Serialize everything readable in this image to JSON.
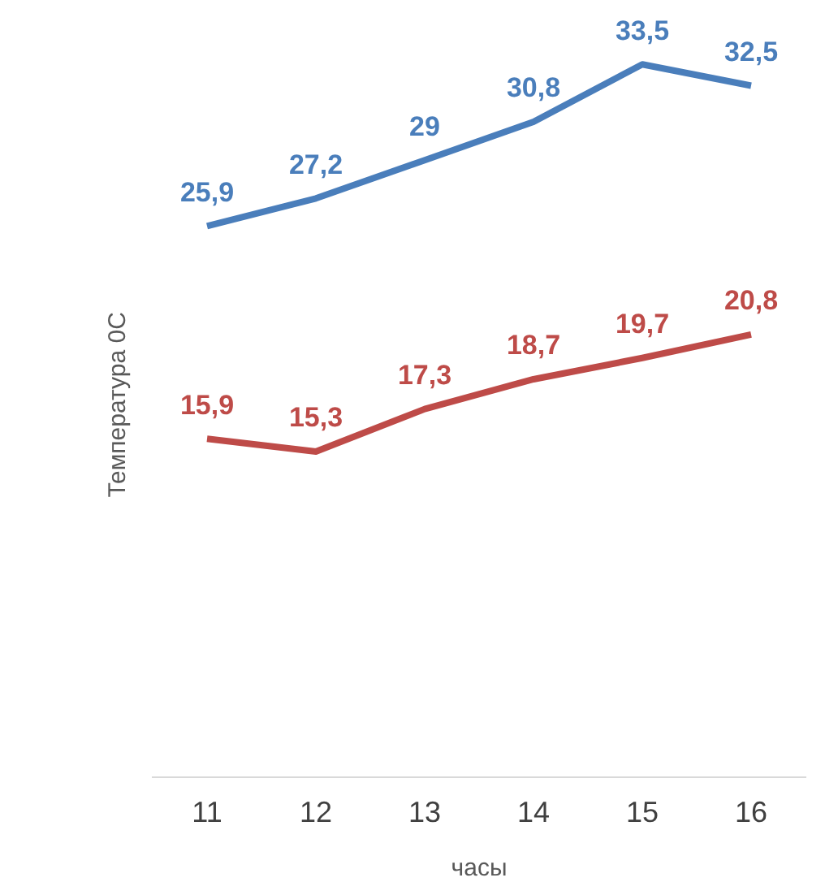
{
  "chart_data": {
    "type": "line",
    "xlabel": "часы",
    "ylabel": "Температура 0С",
    "categories": [
      "11",
      "12",
      "13",
      "14",
      "15",
      "16"
    ],
    "grid": false,
    "legend": false,
    "marker": "none",
    "line_style": "solid",
    "tick_labels": "x",
    "series": [
      {
        "color": "#4a7ebb",
        "values": [
          25.9,
          27.2,
          29,
          30.8,
          33.5,
          32.5
        ],
        "value_labels": [
          "25,9",
          "27,2",
          "29",
          "30,8",
          "33,5",
          "32,5"
        ]
      },
      {
        "color": "#be4b48",
        "values": [
          15.9,
          15.3,
          17.3,
          18.7,
          19.7,
          20.8
        ],
        "value_labels": [
          "15,9",
          "15,3",
          "17,3",
          "18,7",
          "19,7",
          "20,8"
        ]
      }
    ]
  }
}
